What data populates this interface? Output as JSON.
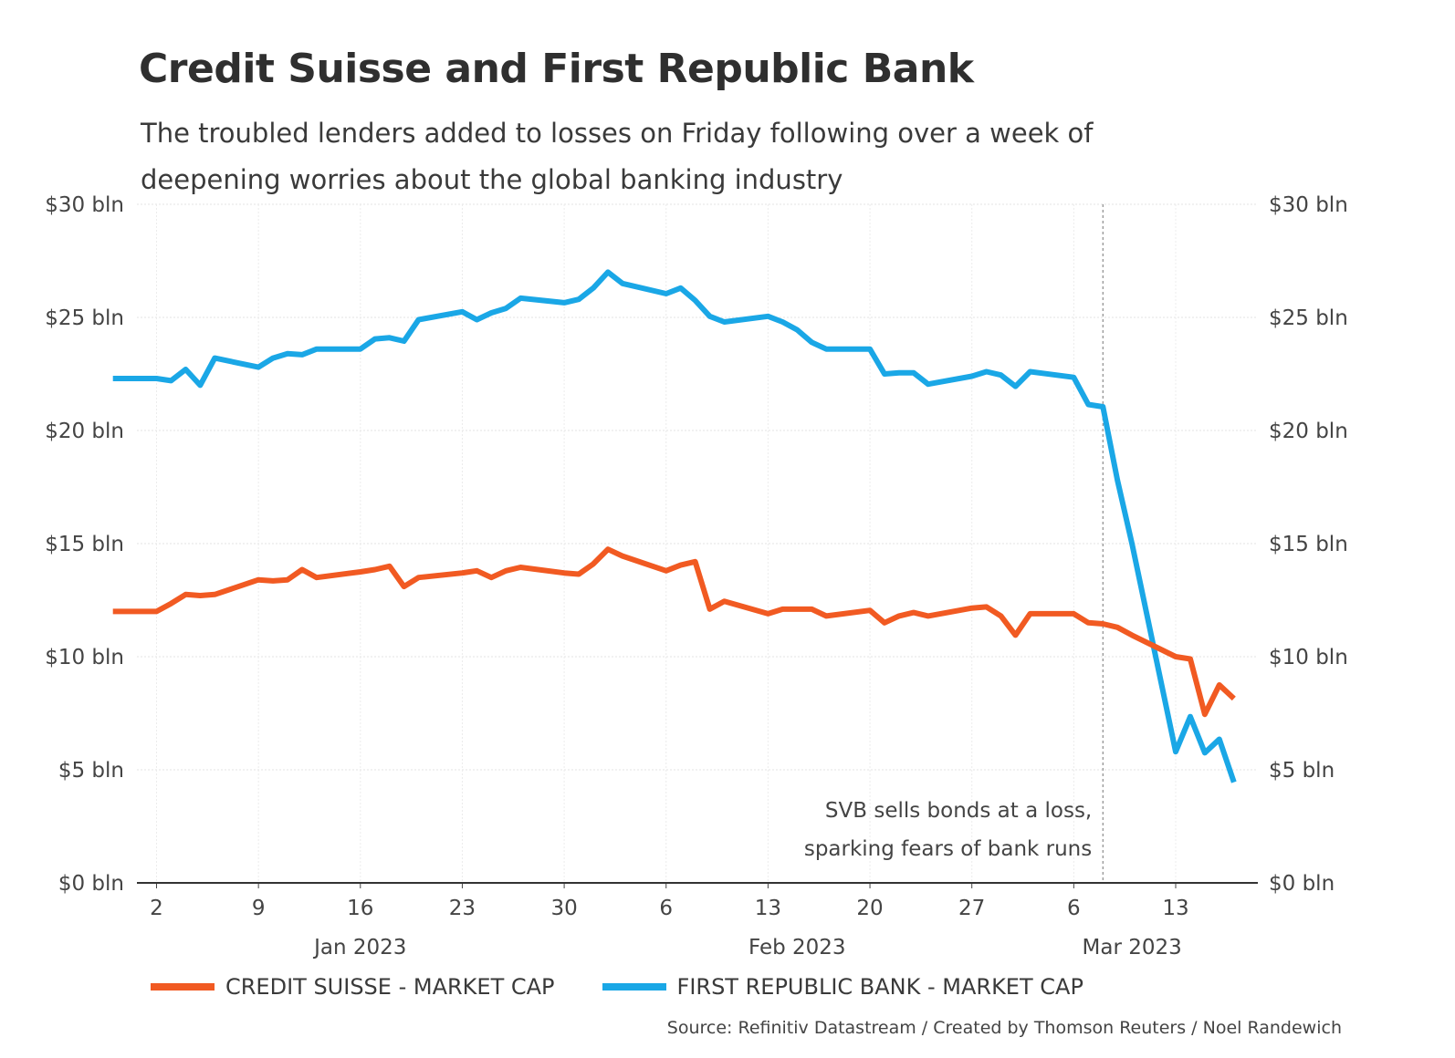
{
  "header": {
    "title": "Credit Suisse and First Republic Bank",
    "subtitle": "The troubled lenders added to losses on Friday following over a week of deepening worries about the global banking industry"
  },
  "legend": {
    "items": [
      {
        "label": "CREDIT SUISSE - MARKET CAP",
        "color": "#f15a22"
      },
      {
        "label": "FIRST REPUBLIC BANK - MARKET CAP",
        "color": "#1aa7e6"
      }
    ]
  },
  "source": "Source: Refinitiv Datastream / Created by Thomson Reuters / Noel Randewich",
  "chart_data": {
    "type": "line",
    "title": "Credit Suisse and First Republic Bank",
    "subtitle": "The troubled lenders added to losses on Friday following over a week of deepening worries about the global banking industry",
    "ylim": [
      0,
      30
    ],
    "y_ticks": [
      0,
      5,
      10,
      15,
      20,
      25,
      30
    ],
    "y_tick_labels": [
      "$0 bln",
      "$5 bln",
      "$10 bln",
      "$15 bln",
      "$20 bln",
      "$25 bln",
      "$30 bln"
    ],
    "y_axes": "left and right",
    "x_range": [
      "2022-12-31",
      "2023-03-17"
    ],
    "x_ticks": [
      {
        "date": "2023-01-02",
        "label": "2"
      },
      {
        "date": "2023-01-09",
        "label": "9"
      },
      {
        "date": "2023-01-16",
        "label": "16"
      },
      {
        "date": "2023-01-23",
        "label": "23"
      },
      {
        "date": "2023-01-30",
        "label": "30"
      },
      {
        "date": "2023-02-06",
        "label": "6"
      },
      {
        "date": "2023-02-13",
        "label": "13"
      },
      {
        "date": "2023-02-20",
        "label": "20"
      },
      {
        "date": "2023-02-27",
        "label": "27"
      },
      {
        "date": "2023-03-06",
        "label": "6"
      },
      {
        "date": "2023-03-13",
        "label": "13"
      }
    ],
    "month_labels": [
      {
        "label": "Jan 2023",
        "date": "2023-01-16"
      },
      {
        "label": "Feb 2023",
        "date": "2023-02-15"
      },
      {
        "label": "Mar 2023",
        "date": "2023-03-10"
      }
    ],
    "grid": true,
    "legend_position": "bottom",
    "annotation": {
      "date": "2023-03-08",
      "lines": [
        "SVB sells bonds at a loss,",
        "sparking fears of bank runs"
      ]
    },
    "x": [
      "2022-12-30",
      "2023-01-02",
      "2023-01-03",
      "2023-01-04",
      "2023-01-05",
      "2023-01-06",
      "2023-01-09",
      "2023-01-10",
      "2023-01-11",
      "2023-01-12",
      "2023-01-13",
      "2023-01-16",
      "2023-01-17",
      "2023-01-18",
      "2023-01-19",
      "2023-01-20",
      "2023-01-23",
      "2023-01-24",
      "2023-01-25",
      "2023-01-26",
      "2023-01-27",
      "2023-01-30",
      "2023-01-31",
      "2023-02-01",
      "2023-02-02",
      "2023-02-03",
      "2023-02-06",
      "2023-02-07",
      "2023-02-08",
      "2023-02-09",
      "2023-02-10",
      "2023-02-13",
      "2023-02-14",
      "2023-02-15",
      "2023-02-16",
      "2023-02-17",
      "2023-02-20",
      "2023-02-21",
      "2023-02-22",
      "2023-02-23",
      "2023-02-24",
      "2023-02-27",
      "2023-02-28",
      "2023-03-01",
      "2023-03-02",
      "2023-03-03",
      "2023-03-06",
      "2023-03-07",
      "2023-03-08",
      "2023-03-09",
      "2023-03-10",
      "2023-03-13",
      "2023-03-14",
      "2023-03-15",
      "2023-03-16",
      "2023-03-17"
    ],
    "series": [
      {
        "name": "CREDIT SUISSE - MARKET CAP",
        "color": "#f15a22",
        "values": [
          12.0,
          12.0,
          12.35,
          12.75,
          12.7,
          12.75,
          13.4,
          13.35,
          13.4,
          13.85,
          13.5,
          13.75,
          13.85,
          14.0,
          13.1,
          13.5,
          13.7,
          13.8,
          13.5,
          13.8,
          13.95,
          13.7,
          13.65,
          14.1,
          14.75,
          14.45,
          13.8,
          14.05,
          14.2,
          12.1,
          12.45,
          11.9,
          12.1,
          12.1,
          12.1,
          11.8,
          12.05,
          11.5,
          11.8,
          11.95,
          11.8,
          12.15,
          12.2,
          11.8,
          10.95,
          11.9,
          11.9,
          11.5,
          11.45,
          11.3,
          10.95,
          10.0,
          9.9,
          7.45,
          8.75,
          8.15
        ]
      },
      {
        "name": "FIRST REPUBLIC BANK - MARKET CAP",
        "color": "#1aa7e6",
        "values": [
          22.3,
          22.3,
          22.2,
          22.7,
          22.0,
          23.2,
          22.8,
          23.2,
          23.4,
          23.35,
          23.6,
          23.6,
          24.05,
          24.1,
          23.95,
          24.9,
          25.25,
          24.9,
          25.2,
          25.4,
          25.85,
          25.65,
          25.8,
          26.3,
          27.0,
          26.5,
          26.05,
          26.3,
          25.75,
          25.05,
          24.8,
          25.05,
          24.8,
          24.45,
          23.9,
          23.6,
          23.6,
          22.5,
          22.55,
          22.55,
          22.05,
          22.4,
          22.6,
          22.45,
          21.95,
          22.6,
          22.35,
          21.15,
          21.05,
          17.8,
          15.0,
          5.8,
          7.35,
          5.75,
          6.35,
          4.45
        ]
      }
    ]
  }
}
